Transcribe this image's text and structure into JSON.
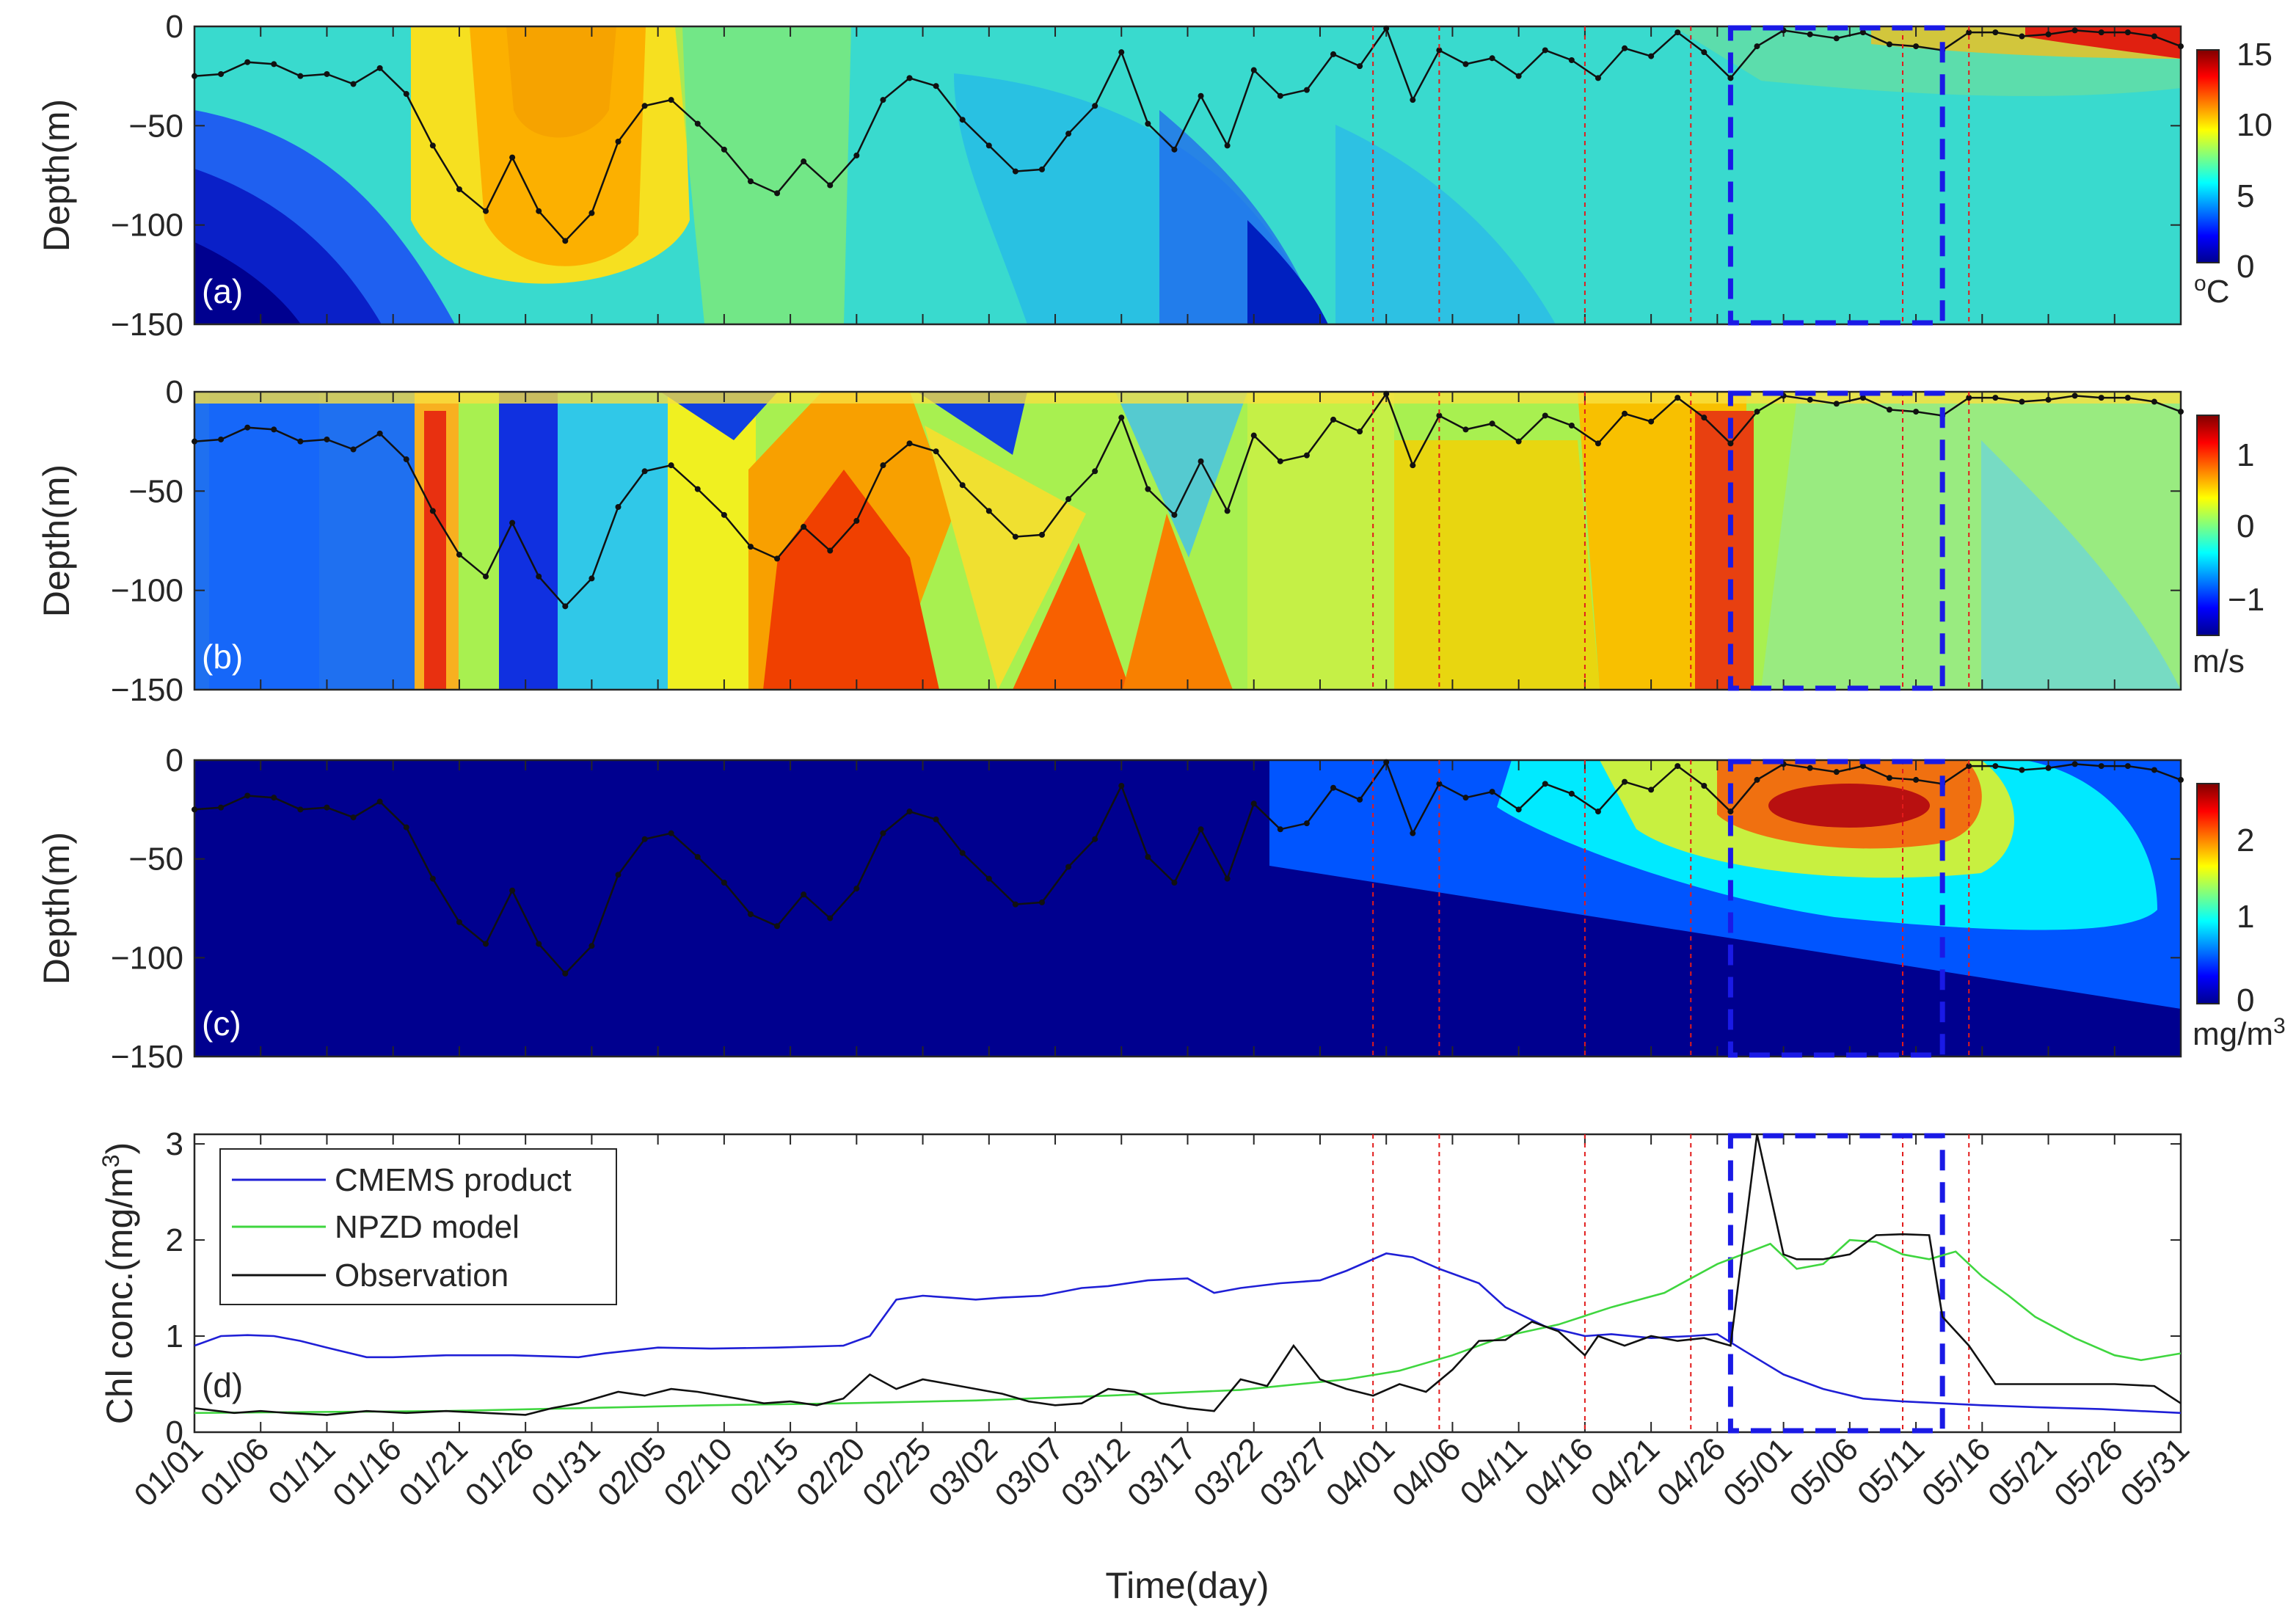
{
  "chart_data": {
    "type": "multi-panel (contour + line)",
    "x_axis": {
      "label": "Time(day)",
      "range_days": [
        1,
        151
      ],
      "tick_labels": [
        "01/01",
        "01/06",
        "01/11",
        "01/16",
        "01/21",
        "01/26",
        "01/31",
        "02/05",
        "02/10",
        "02/15",
        "02/20",
        "02/25",
        "03/02",
        "03/07",
        "03/12",
        "03/17",
        "03/22",
        "03/27",
        "04/01",
        "04/06",
        "04/11",
        "04/16",
        "04/21",
        "04/26",
        "05/01",
        "05/06",
        "05/11",
        "05/16",
        "05/21",
        "05/26",
        "05/31"
      ],
      "tick_days": [
        1,
        6,
        11,
        16,
        21,
        26,
        31,
        36,
        41,
        46,
        51,
        56,
        61,
        66,
        71,
        76,
        81,
        86,
        91,
        96,
        101,
        106,
        111,
        116,
        121,
        126,
        131,
        136,
        141,
        146,
        151
      ]
    },
    "red_dotted_lines_day": [
      90,
      95,
      106,
      114,
      130,
      135
    ],
    "blue_dashed_box_days": [
      117,
      133
    ],
    "mixed_layer_depth": {
      "days": [
        1,
        3,
        5,
        7,
        9,
        11,
        13,
        15,
        17,
        19,
        21,
        23,
        25,
        27,
        29,
        31,
        33,
        35,
        37,
        39,
        41,
        43,
        45,
        47,
        49,
        51,
        53,
        55,
        57,
        59,
        61,
        63,
        65,
        67,
        69,
        71,
        73,
        75,
        77,
        79,
        81,
        83,
        85,
        87,
        89,
        91,
        93,
        95,
        97,
        99,
        101,
        103,
        105,
        107,
        109,
        111,
        113,
        115,
        117,
        119,
        121,
        123,
        125,
        127,
        129,
        131,
        133,
        135,
        137,
        139,
        141,
        143,
        145,
        147,
        149,
        151
      ],
      "depth": [
        -25,
        -24,
        -18,
        -19,
        -25,
        -24,
        -29,
        -21,
        -34,
        -60,
        -82,
        -93,
        -66,
        -93,
        -108,
        -94,
        -58,
        -40,
        -37,
        -49,
        -62,
        -78,
        -84,
        -68,
        -80,
        -65,
        -37,
        -26,
        -30,
        -47,
        -60,
        -73,
        -72,
        -54,
        -40,
        -13,
        -49,
        -62,
        -35,
        -60,
        -22,
        -35,
        -32,
        -14,
        -20,
        -1,
        -37,
        -12,
        -19,
        -16,
        -25,
        -12,
        -17,
        -26,
        -11,
        -15,
        -3,
        -13,
        -26,
        -10,
        -2,
        -4,
        -6,
        -3,
        -9,
        -10,
        -12,
        -3,
        -3,
        -5,
        -4,
        -2,
        -3,
        -3,
        -5,
        -10
      ]
    },
    "panels": [
      {
        "id": "a",
        "label": "(a)",
        "type": "heatmap",
        "ylabel": "Depth(m)",
        "yticks": [
          "0",
          "−50",
          "−100",
          "−150"
        ],
        "ylim": [
          -150,
          0
        ],
        "colorbar": {
          "min": 0,
          "max": 15,
          "ticks": [
            "0",
            "5",
            "10",
            "15"
          ],
          "unit": "oC",
          "colormap": "jet"
        }
      },
      {
        "id": "b",
        "label": "(b)",
        "type": "heatmap",
        "ylabel": "Depth(m)",
        "yticks": [
          "0",
          "−50",
          "−100",
          "−150"
        ],
        "ylim": [
          -150,
          0
        ],
        "colorbar": {
          "min": -1.5,
          "max": 1.5,
          "ticks": [
            "1",
            "0",
            "−1"
          ],
          "unit": "m/s",
          "colormap": "jet"
        }
      },
      {
        "id": "c",
        "label": "(c)",
        "type": "heatmap",
        "ylabel": "Depth(m)",
        "yticks": [
          "0",
          "−50",
          "−100",
          "−150"
        ],
        "ylim": [
          -150,
          0
        ],
        "colorbar": {
          "min": 0,
          "max": 2.8,
          "ticks": [
            "2",
            "1",
            "0"
          ],
          "unit": "mg/m3",
          "colormap": "jet"
        }
      },
      {
        "id": "d",
        "label": "(d)",
        "type": "line",
        "ylabel": "Chl conc.(mg/m3)",
        "ylim": [
          0,
          3.1
        ],
        "yticks": [
          "0",
          "1",
          "2",
          "3"
        ],
        "legend_position": "top-left",
        "series": [
          {
            "name": "CMEMS product",
            "color": "#1f1fd6",
            "days": [
              1,
              3,
              5,
              7,
              9,
              11,
              14,
              16,
              20,
              25,
              30,
              32,
              36,
              40,
              45,
              50,
              52,
              54,
              56,
              58,
              60,
              62,
              65,
              68,
              70,
              73,
              76,
              78,
              80,
              83,
              86,
              88,
              91,
              93,
              95,
              98,
              100,
              103,
              106,
              108,
              111,
              114,
              116,
              118,
              121,
              124,
              127,
              130,
              133,
              136,
              140,
              145,
              151
            ],
            "values": [
              0.9,
              1.0,
              1.01,
              1.0,
              0.95,
              0.88,
              0.78,
              0.78,
              0.8,
              0.8,
              0.78,
              0.82,
              0.88,
              0.87,
              0.88,
              0.9,
              1.0,
              1.38,
              1.42,
              1.4,
              1.38,
              1.4,
              1.42,
              1.5,
              1.52,
              1.58,
              1.6,
              1.45,
              1.5,
              1.55,
              1.58,
              1.68,
              1.86,
              1.82,
              1.7,
              1.55,
              1.3,
              1.1,
              1.0,
              1.02,
              0.98,
              1.0,
              1.02,
              0.85,
              0.6,
              0.45,
              0.35,
              0.32,
              0.3,
              0.28,
              0.26,
              0.24,
              0.2
            ]
          },
          {
            "name": "NPZD model",
            "color": "#3fd63f",
            "days": [
              1,
              10,
              20,
              30,
              40,
              50,
              60,
              70,
              80,
              88,
              92,
              96,
              100,
              104,
              108,
              112,
              116,
              120,
              122,
              124,
              126,
              128,
              130,
              132,
              134,
              136,
              138,
              140,
              143,
              146,
              148,
              151
            ],
            "values": [
              0.2,
              0.21,
              0.22,
              0.25,
              0.28,
              0.3,
              0.33,
              0.38,
              0.44,
              0.55,
              0.64,
              0.8,
              1.0,
              1.12,
              1.3,
              1.45,
              1.75,
              1.96,
              1.7,
              1.75,
              2.0,
              1.98,
              1.85,
              1.8,
              1.88,
              1.62,
              1.42,
              1.2,
              0.98,
              0.8,
              0.75,
              0.82
            ]
          },
          {
            "name": "Observation",
            "color": "#111111",
            "days": [
              1,
              4,
              6,
              8,
              11,
              14,
              17,
              20,
              23,
              26,
              28,
              30,
              33,
              35,
              37,
              39,
              42,
              44,
              46,
              48,
              50,
              52,
              54,
              56,
              58,
              60,
              62,
              64,
              66,
              68,
              70,
              72,
              74,
              76,
              78,
              80,
              82,
              84,
              86,
              88,
              90,
              92,
              94,
              96,
              98,
              100,
              102,
              104,
              106,
              107,
              109,
              111,
              113,
              115,
              117,
              119,
              121,
              122,
              124,
              126,
              128,
              130,
              132,
              133,
              135,
              137,
              140,
              143,
              146,
              149,
              151
            ],
            "values": [
              0.25,
              0.2,
              0.22,
              0.2,
              0.18,
              0.22,
              0.2,
              0.22,
              0.2,
              0.18,
              0.25,
              0.3,
              0.42,
              0.38,
              0.45,
              0.42,
              0.35,
              0.3,
              0.32,
              0.28,
              0.35,
              0.6,
              0.45,
              0.55,
              0.5,
              0.45,
              0.4,
              0.32,
              0.28,
              0.3,
              0.45,
              0.42,
              0.3,
              0.25,
              0.22,
              0.55,
              0.48,
              0.9,
              0.55,
              0.45,
              0.38,
              0.5,
              0.42,
              0.65,
              0.95,
              0.96,
              1.15,
              1.05,
              0.8,
              1.0,
              0.9,
              1.0,
              0.95,
              0.98,
              0.9,
              3.1,
              1.85,
              1.8,
              1.8,
              1.85,
              2.05,
              2.06,
              2.05,
              1.2,
              0.9,
              0.5,
              0.5,
              0.5,
              0.5,
              0.48,
              0.3
            ]
          }
        ]
      }
    ]
  }
}
